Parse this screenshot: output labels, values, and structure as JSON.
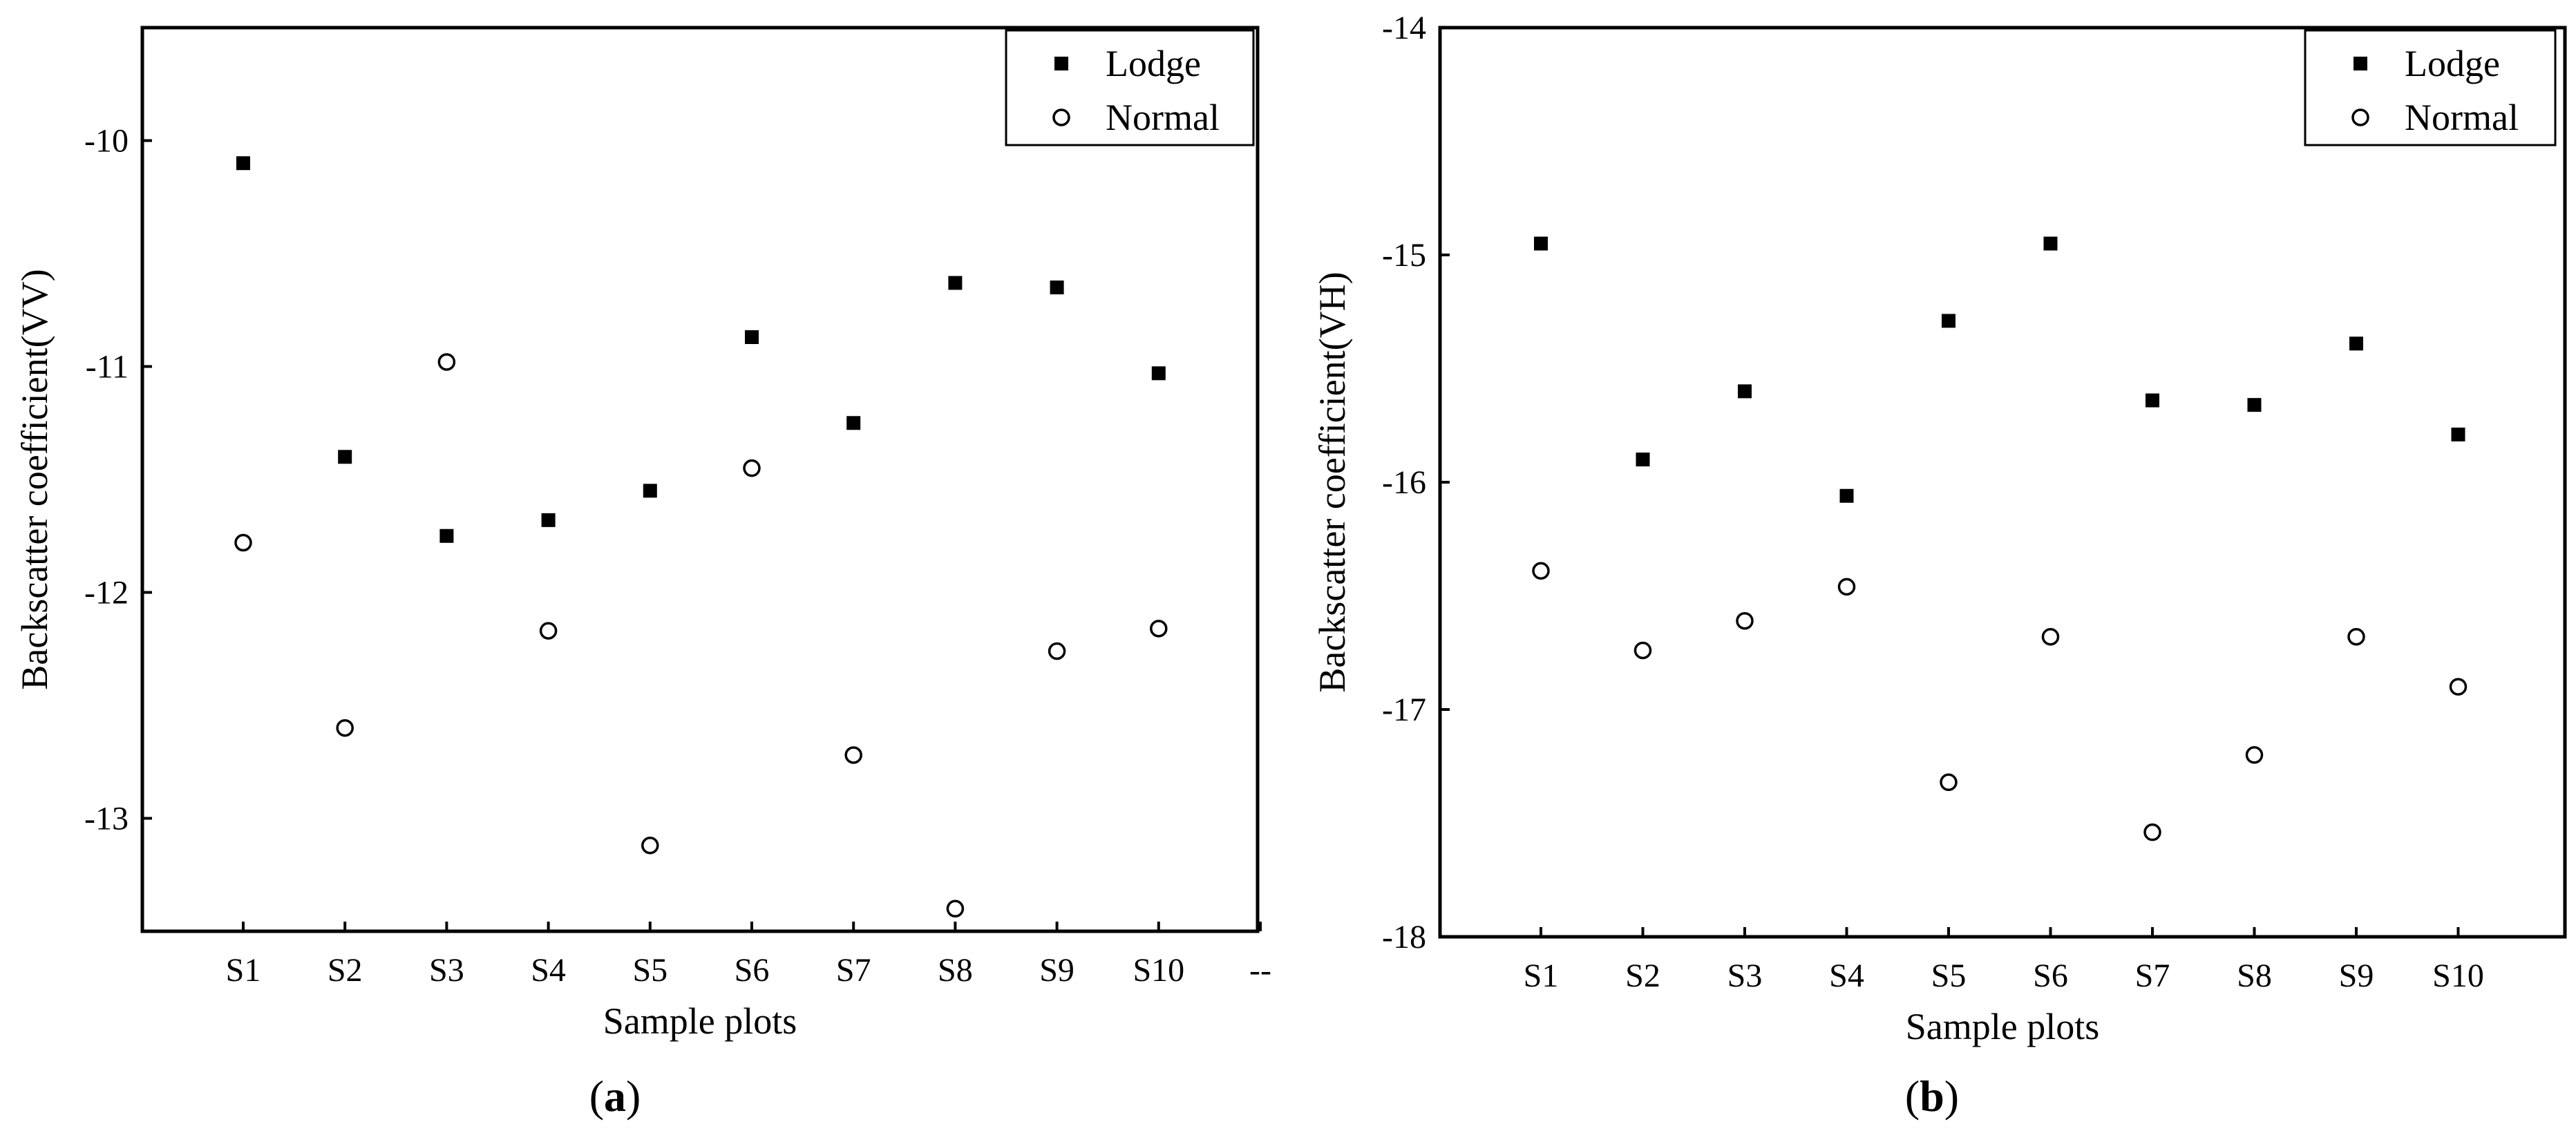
{
  "chart_data": [
    {
      "type": "scatter",
      "panel_label": "a",
      "xlabel": "Sample plots",
      "ylabel": "Backscatter coefficient(VV)",
      "categories": [
        "S1",
        "S2",
        "S3",
        "S4",
        "S5",
        "S6",
        "S7",
        "S8",
        "S9",
        "S10",
        "--"
      ],
      "ylim": [
        -13.5,
        -9.5
      ],
      "yticks": [
        -13,
        -12,
        -11,
        -10
      ],
      "legend_position": "top-right",
      "series": [
        {
          "name": "Lodge",
          "marker": "filled-square",
          "values": [
            -10.1,
            -11.4,
            -11.75,
            -11.68,
            -11.55,
            -10.87,
            -11.25,
            -10.63,
            -10.65,
            -11.03
          ]
        },
        {
          "name": "Normal",
          "marker": "open-circle",
          "values": [
            -11.78,
            -12.6,
            -10.98,
            -12.17,
            -13.12,
            -11.45,
            -12.72,
            -13.4,
            -12.26,
            -12.16
          ]
        }
      ]
    },
    {
      "type": "scatter",
      "panel_label": "b",
      "xlabel": "Sample plots",
      "ylabel": "Backscatter coefficient(VH)",
      "categories": [
        "S1",
        "S2",
        "S3",
        "S4",
        "S5",
        "S6",
        "S7",
        "S8",
        "S9",
        "S10"
      ],
      "ylim": [
        -18,
        -14
      ],
      "yticks": [
        -18,
        -17,
        -16,
        -15,
        -14
      ],
      "legend_position": "top-right",
      "series": [
        {
          "name": "Lodge",
          "marker": "filled-square",
          "values": [
            -14.95,
            -15.9,
            -15.6,
            -16.06,
            -15.29,
            -14.95,
            -15.64,
            -15.66,
            -15.39,
            -15.79
          ]
        },
        {
          "name": "Normal",
          "marker": "open-circle",
          "values": [
            -16.39,
            -16.74,
            -16.61,
            -16.46,
            -17.32,
            -16.68,
            -17.54,
            -17.2,
            -16.68,
            -16.9
          ]
        }
      ]
    }
  ]
}
